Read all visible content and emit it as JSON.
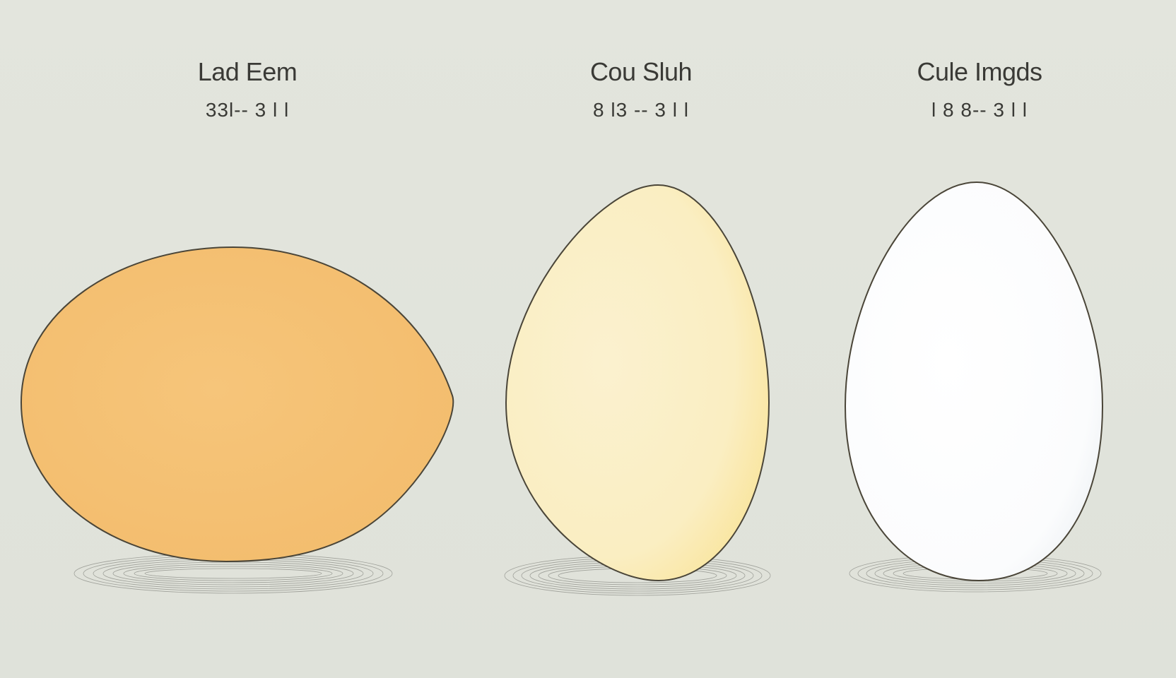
{
  "eggs": [
    {
      "title": "Lad Eem",
      "subtitle": "33l-- 3 l l",
      "fill": "#f5c275"
    },
    {
      "title": "Cou Sluh",
      "subtitle": "8 l3 -- 3 l l",
      "fill": "#fbefc4"
    },
    {
      "title": "Cule Imgds",
      "subtitle": "l 8 8-- 3 l l",
      "fill": "#fcfdfd"
    }
  ],
  "colors": {
    "background": "#e2e4dc",
    "outline": "#4a4538",
    "text": "#3a3a36"
  }
}
